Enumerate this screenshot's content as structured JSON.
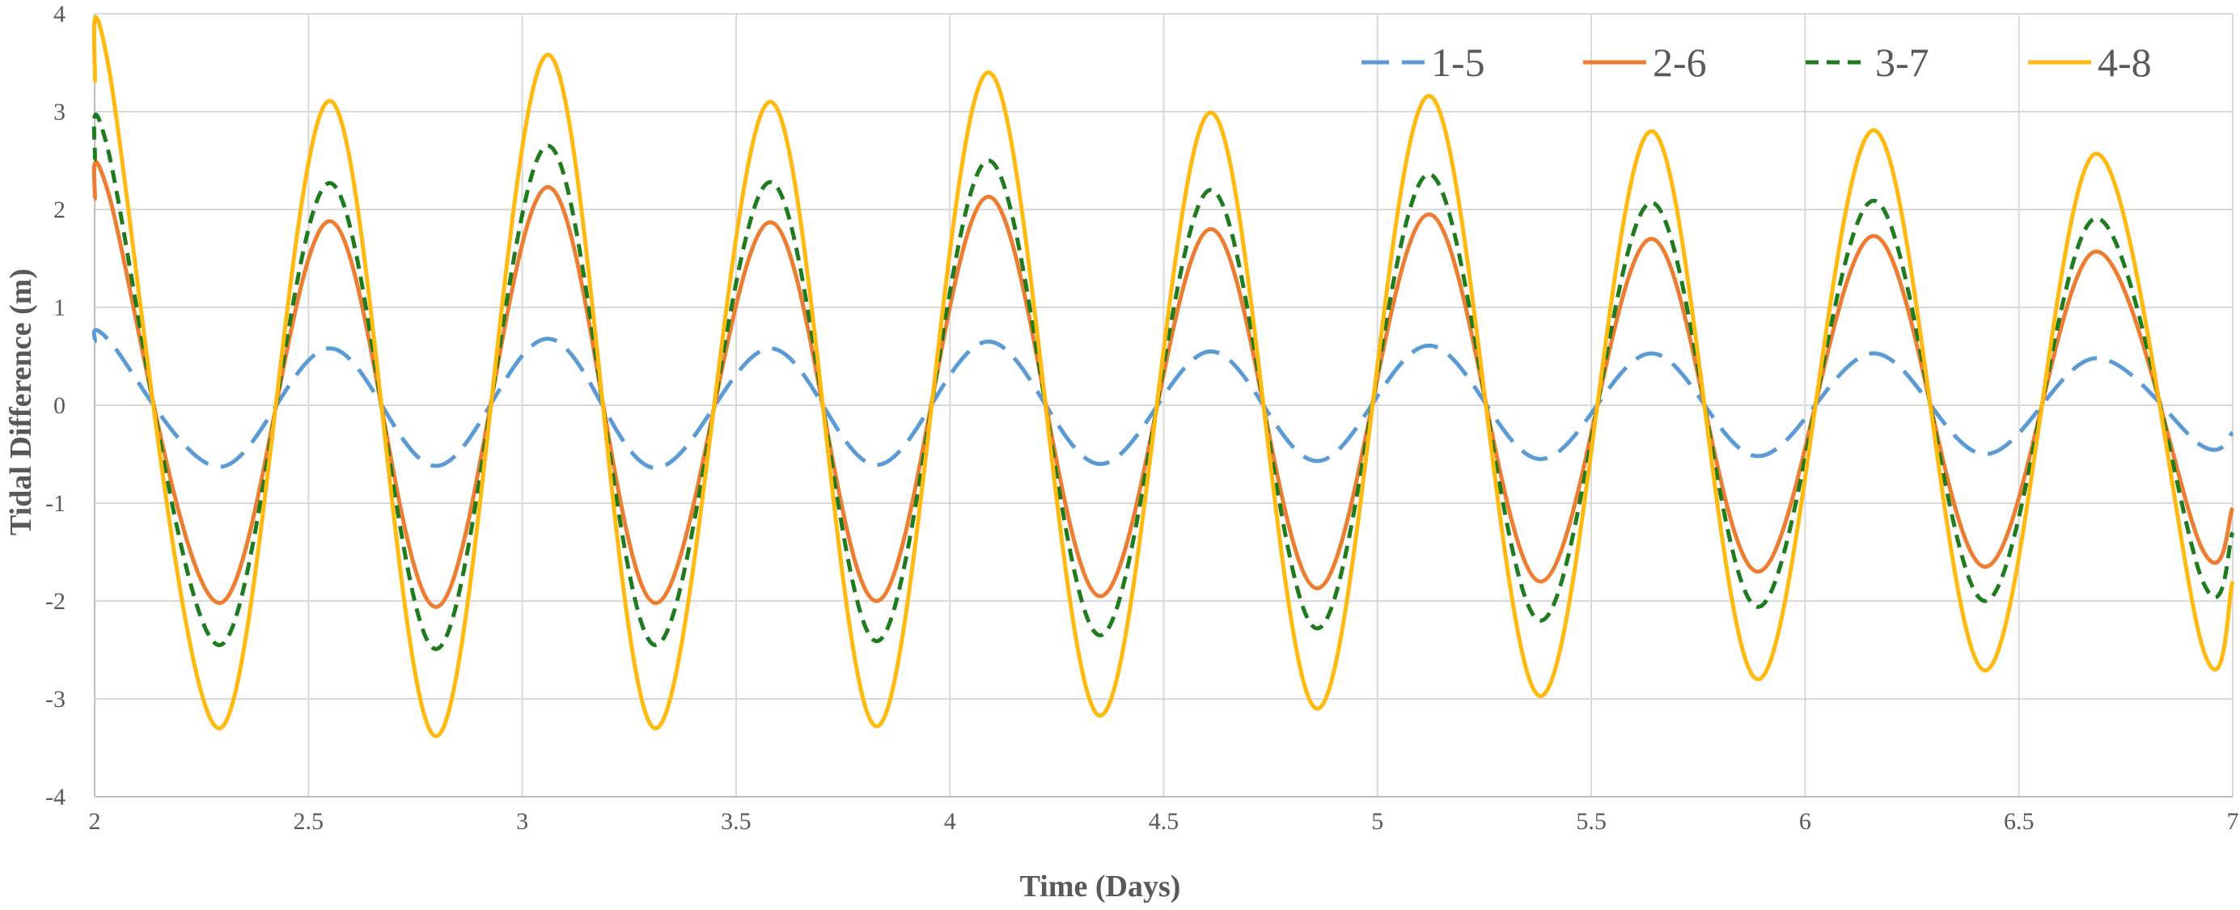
{
  "chart_data": {
    "type": "line",
    "title": "",
    "xlabel": "Time (Days)",
    "ylabel": "Tidal Difference (m)",
    "xlim": [
      2,
      7
    ],
    "ylim": [
      -4,
      4
    ],
    "x_ticks": [
      "2",
      "2.5",
      "3",
      "3.5",
      "4",
      "4.5",
      "5",
      "5.5",
      "6",
      "6.5",
      "7"
    ],
    "y_ticks": [
      "-4",
      "-3",
      "-2",
      "-1",
      "0",
      "1",
      "2",
      "3",
      "4"
    ],
    "grid": true,
    "legend_position": "top-right",
    "x": [
      2.0,
      2.03,
      2.29,
      2.55,
      2.8,
      3.06,
      3.31,
      3.58,
      3.83,
      4.09,
      4.35,
      4.61,
      4.86,
      5.12,
      5.38,
      5.64,
      5.89,
      6.16,
      6.42,
      6.68,
      6.93,
      7.0
    ],
    "series": [
      {
        "name": "1-5",
        "color": "#5B9BD5",
        "dash": "long-dash",
        "values": [
          0.65,
          0.68,
          -0.63,
          0.58,
          -0.62,
          0.68,
          -0.64,
          0.58,
          -0.61,
          0.65,
          -0.6,
          0.55,
          -0.57,
          0.61,
          -0.55,
          0.53,
          -0.52,
          0.53,
          -0.5,
          0.48,
          -0.42,
          -0.28
        ]
      },
      {
        "name": "2-6",
        "color": "#ED7D31",
        "dash": "solid",
        "values": [
          2.1,
          2.2,
          -2.02,
          1.88,
          -2.06,
          2.23,
          -2.02,
          1.87,
          -2.0,
          2.13,
          -1.95,
          1.8,
          -1.87,
          1.95,
          -1.8,
          1.7,
          -1.7,
          1.73,
          -1.65,
          1.57,
          -1.48,
          -1.05
        ]
      },
      {
        "name": "3-7",
        "color": "#1E7B1E",
        "dash": "short-dash",
        "values": [
          2.5,
          2.63,
          -2.45,
          2.27,
          -2.49,
          2.65,
          -2.45,
          2.28,
          -2.41,
          2.5,
          -2.35,
          2.2,
          -2.28,
          2.36,
          -2.2,
          2.07,
          -2.06,
          2.09,
          -2.0,
          1.91,
          -1.8,
          -1.3
        ]
      },
      {
        "name": "4-8",
        "color": "#FFB90F",
        "dash": "solid",
        "values": [
          3.3,
          3.52,
          -3.3,
          3.11,
          -3.38,
          3.58,
          -3.3,
          3.1,
          -3.28,
          3.4,
          -3.17,
          2.99,
          -3.1,
          3.16,
          -2.97,
          2.8,
          -2.8,
          2.81,
          -2.71,
          2.57,
          -2.48,
          -1.8
        ]
      }
    ]
  }
}
